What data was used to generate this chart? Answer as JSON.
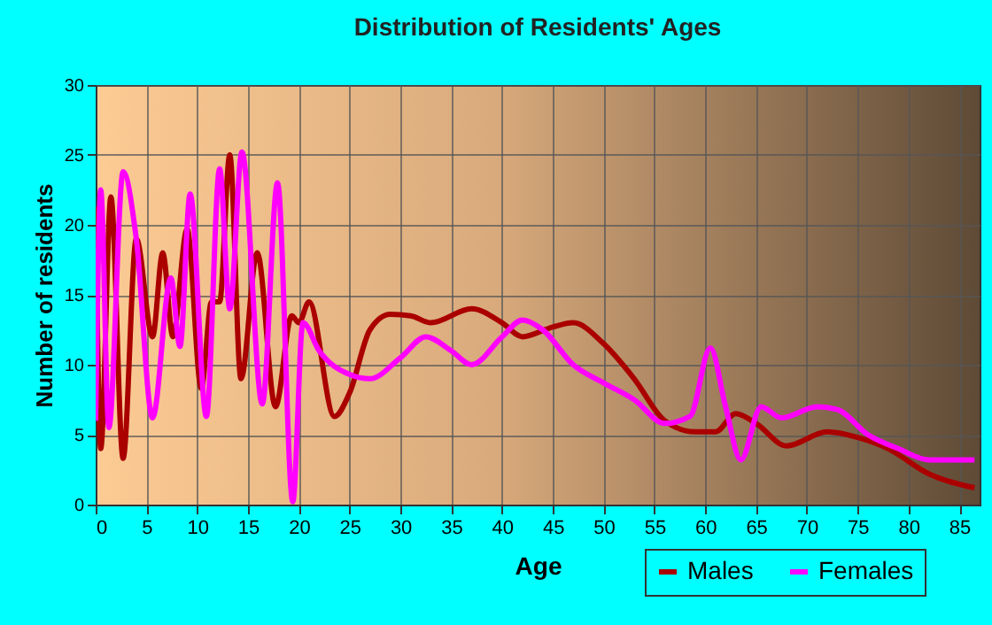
{
  "chart_data": {
    "type": "line",
    "title": "Distribution of Residents' Ages",
    "xlabel": "Age",
    "ylabel": "Number of residents",
    "xlim": [
      0,
      87
    ],
    "xticks": [
      0,
      5,
      10,
      15,
      20,
      25,
      30,
      35,
      40,
      45,
      50,
      55,
      60,
      65,
      70,
      75,
      80,
      85
    ],
    "ylim": [
      0,
      30
    ],
    "yticks": [
      0,
      5,
      10,
      15,
      20,
      25,
      30
    ],
    "grid": true,
    "legend": "bottom right",
    "series": [
      {
        "name": "Males",
        "color": "#aa0000",
        "x": [
          0,
          0.5,
          1.5,
          2.7,
          4,
          5.6,
          6.6,
          7.6,
          9,
          10.4,
          11.4,
          12.2,
          13.2,
          14.3,
          15.9,
          17.7,
          19.3,
          20,
          21,
          23.5,
          25,
          27,
          29,
          31,
          33,
          37,
          40,
          42,
          45,
          47,
          50,
          53,
          56,
          59,
          61,
          63,
          65,
          68,
          72,
          75,
          78,
          82,
          86.5
        ],
        "values": [
          21.3,
          4,
          22,
          3.3,
          19,
          12,
          18,
          12,
          19.7,
          8.3,
          14.5,
          14.5,
          25,
          9,
          18,
          7,
          13.5,
          13,
          14.5,
          6.3,
          8,
          12.5,
          13.6,
          13.5,
          13,
          14,
          13,
          12,
          12.7,
          13,
          11.5,
          9,
          6,
          5.2,
          5.2,
          6.5,
          5.8,
          4.2,
          5.2,
          4.8,
          4,
          2.2,
          1.2
        ]
      },
      {
        "name": "Females",
        "color": "#ff00ff",
        "x": [
          0,
          0.5,
          1.3,
          2.7,
          4,
          5.6,
          7.4,
          8.3,
          9.3,
          10.9,
          12.2,
          13.2,
          14.4,
          16.4,
          17.9,
          19.4,
          20.4,
          22,
          25,
          27,
          30,
          32.5,
          35,
          37,
          40,
          42,
          44,
          47,
          50,
          53,
          56,
          58.5,
          60.5,
          62,
          63.5,
          65.5,
          67.5,
          71,
          73,
          76,
          79,
          82,
          86.5
        ],
        "values": [
          6,
          22.5,
          5.5,
          23.8,
          19,
          6.2,
          16.2,
          11.3,
          22.2,
          6.3,
          24,
          14,
          25.2,
          7.2,
          23,
          0.2,
          13,
          11,
          9.3,
          9,
          10.5,
          12,
          11,
          10,
          12,
          13.2,
          12.5,
          10,
          8.7,
          7.5,
          5.8,
          6.3,
          11.2,
          7,
          3.2,
          7,
          6.2,
          7,
          6.8,
          5,
          4,
          3.2,
          3.2
        ]
      }
    ]
  }
}
